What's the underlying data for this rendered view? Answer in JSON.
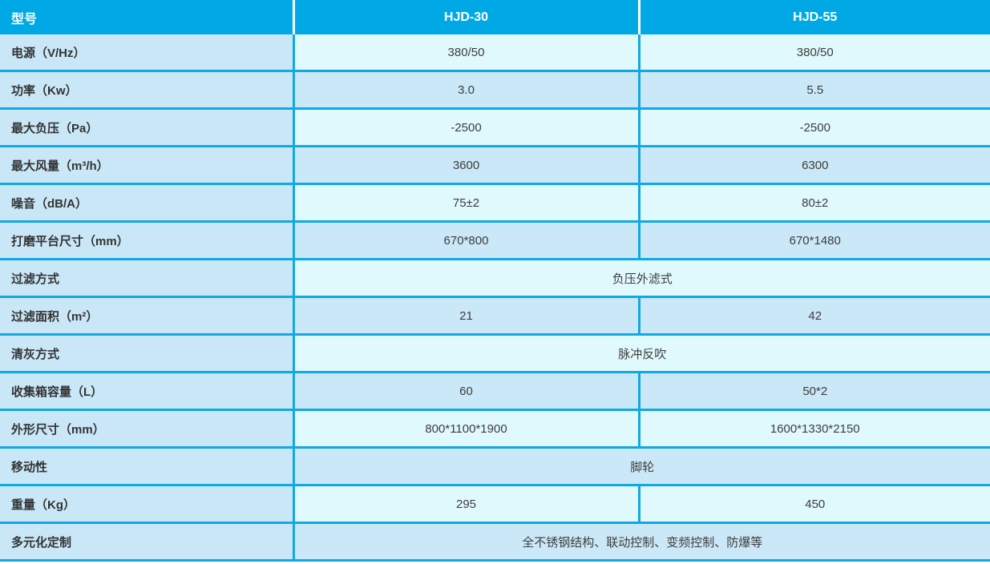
{
  "table": {
    "title_column_header": "型号",
    "header": {
      "columns": [
        "HJD-30",
        "HJD-55"
      ]
    },
    "rows": [
      {
        "label": "电源（V/Hz）",
        "hjd30": "380/50",
        "hjd55": "380/50"
      },
      {
        "label": "功率（Kw）",
        "hjd30": "3.0",
        "hjd55": "5.5"
      },
      {
        "label": "最大负压（Pa）",
        "hjd30": "-2500",
        "hjd55": "-2500"
      },
      {
        "label": "最大风量（m³/h）",
        "hjd30": "3600",
        "hjd55": "6300"
      },
      {
        "label": "噪音（dB/A）",
        "hjd30": "75±2",
        "hjd55": "80±2"
      },
      {
        "label": "打磨平台尺寸（mm）",
        "hjd30": "670*800",
        "hjd55": "670*1480"
      },
      {
        "label": "过滤方式",
        "merged": "负压外滤式"
      },
      {
        "label": "过滤面积（m²）",
        "hjd30": "21",
        "hjd55": "42"
      },
      {
        "label": "清灰方式",
        "merged": "脉冲反吹"
      },
      {
        "label": "收集箱容量（L）",
        "hjd30": "60",
        "hjd55": "50*2"
      },
      {
        "label": "外形尺寸（mm）",
        "hjd30": "800*1100*1900",
        "hjd55": "1600*1330*2150"
      },
      {
        "label": "移动性",
        "merged": "脚轮"
      },
      {
        "label": "重量（Kg）",
        "hjd30": "295",
        "hjd55": "450"
      },
      {
        "label": "多元化定制",
        "merged": "全不锈钢结构、联动控制、变频控制、防爆等"
      }
    ]
  },
  "colors": {
    "header_bg": "#00a9e6",
    "grid_line": "#12a8e3",
    "label_column_bg": "#c9e7f7",
    "row_light_bg": "#e0f9fd",
    "row_dark_bg": "#cbe8f8",
    "header_text": "#ffffff",
    "body_text": "#3d3d3d"
  }
}
